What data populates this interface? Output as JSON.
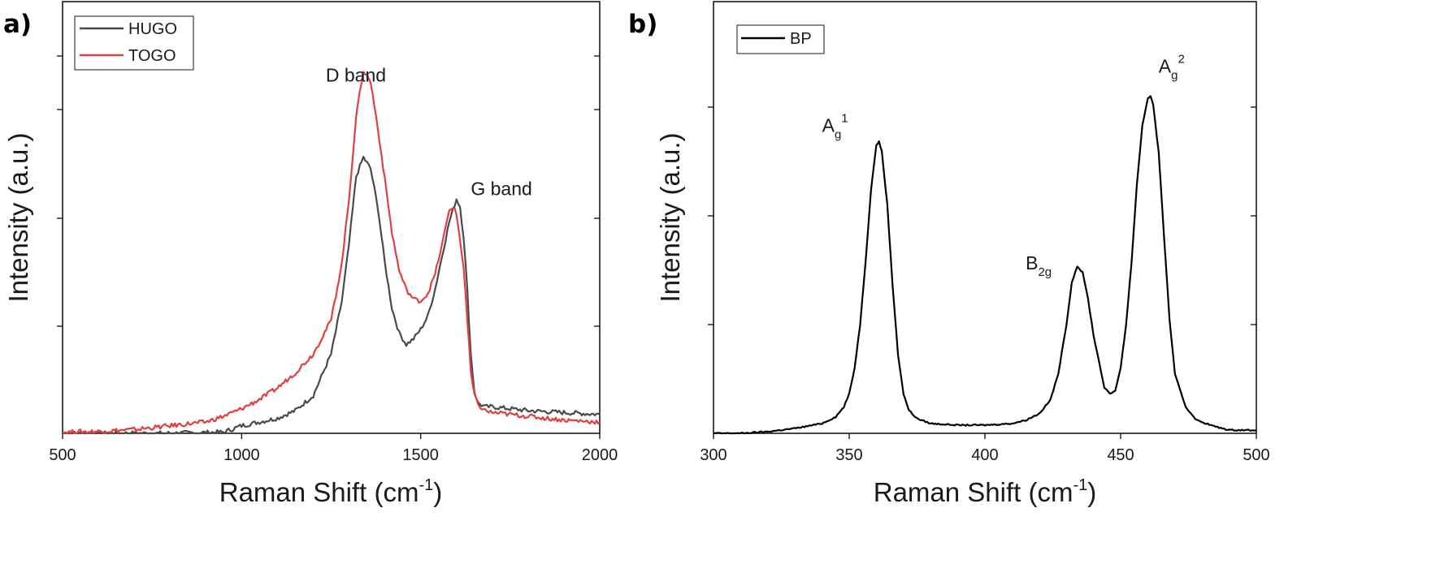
{
  "chart_data": [
    {
      "panel": "a)",
      "type": "line",
      "xlabel": "Raman Shift (cm",
      "xlabel_sup": "-1",
      "xlabel_tail": ")",
      "ylabel": "Intensity (a.u.)",
      "xlim": [
        500,
        2000
      ],
      "ylim": [
        0,
        1.0
      ],
      "xticks": [
        500,
        1000,
        1500,
        2000
      ],
      "yticks": [
        0.2,
        0.4,
        0.6,
        0.8,
        1.0
      ],
      "y_tick_labels_shown": false,
      "legend_position": "top-left",
      "series": [
        {
          "name": "HUGO",
          "color": "#4a4a4a",
          "x": [
            500,
            800,
            950,
            1000,
            1050,
            1100,
            1150,
            1200,
            1250,
            1280,
            1300,
            1320,
            1340,
            1360,
            1380,
            1400,
            1420,
            1440,
            1460,
            1480,
            1500,
            1520,
            1540,
            1560,
            1580,
            1600,
            1610,
            1620,
            1630,
            1640,
            1650,
            1660,
            1680,
            1700,
            1750,
            1800,
            1900,
            2000
          ],
          "y": [
            0.0,
            0.0,
            0.003,
            0.02,
            0.03,
            0.04,
            0.06,
            0.1,
            0.21,
            0.35,
            0.5,
            0.68,
            0.73,
            0.7,
            0.6,
            0.45,
            0.33,
            0.265,
            0.235,
            0.25,
            0.275,
            0.31,
            0.38,
            0.47,
            0.56,
            0.62,
            0.6,
            0.52,
            0.38,
            0.21,
            0.11,
            0.08,
            0.07,
            0.07,
            0.065,
            0.06,
            0.055,
            0.05
          ]
        },
        {
          "name": "TOGO",
          "color": "#e04040",
          "x": [
            500,
            600,
            700,
            800,
            900,
            950,
            1000,
            1050,
            1100,
            1150,
            1200,
            1250,
            1280,
            1300,
            1320,
            1340,
            1360,
            1380,
            1400,
            1420,
            1440,
            1460,
            1480,
            1500,
            1520,
            1540,
            1560,
            1580,
            1590,
            1600,
            1620,
            1630,
            1640,
            1650,
            1660,
            1680,
            1700,
            1750,
            1800,
            1900,
            2000
          ],
          "y": [
            0.003,
            0.005,
            0.01,
            0.02,
            0.03,
            0.045,
            0.065,
            0.09,
            0.12,
            0.16,
            0.21,
            0.3,
            0.45,
            0.62,
            0.84,
            0.96,
            0.93,
            0.81,
            0.67,
            0.53,
            0.43,
            0.38,
            0.355,
            0.35,
            0.37,
            0.42,
            0.5,
            0.59,
            0.6,
            0.58,
            0.44,
            0.3,
            0.16,
            0.1,
            0.075,
            0.06,
            0.055,
            0.05,
            0.045,
            0.035,
            0.03
          ]
        }
      ],
      "annotations": [
        {
          "text": "D band",
          "x": 1235,
          "y": 0.93
        },
        {
          "text": "G band",
          "x": 1640,
          "y": 0.63
        }
      ]
    },
    {
      "panel": "b)",
      "type": "line",
      "xlabel": "Raman Shift (cm",
      "xlabel_sup": "-1",
      "xlabel_tail": ")",
      "ylabel": "Intensity (a.u.)",
      "xlim": [
        300,
        500
      ],
      "ylim": [
        0,
        1.0
      ],
      "xticks": [
        300,
        350,
        400,
        450,
        500
      ],
      "yticks": [
        0.2,
        0.4,
        0.6,
        0.8,
        1.0
      ],
      "y_tick_labels_shown": false,
      "legend_position": "top-left",
      "series": [
        {
          "name": "BP",
          "color": "#000000",
          "x": [
            300,
            310,
            320,
            330,
            340,
            345,
            348,
            350,
            352,
            354,
            356,
            358,
            360,
            361,
            362,
            364,
            366,
            368,
            370,
            372,
            375,
            380,
            390,
            400,
            410,
            415,
            420,
            424,
            427,
            430,
            432,
            434,
            436,
            438,
            440,
            442,
            444,
            446,
            448,
            450,
            452,
            454,
            456,
            458,
            460,
            461,
            462,
            464,
            466,
            468,
            470,
            474,
            478,
            485,
            490,
            500
          ],
          "y": [
            0.0,
            0.0,
            0.005,
            0.015,
            0.03,
            0.05,
            0.08,
            0.12,
            0.2,
            0.33,
            0.52,
            0.74,
            0.88,
            0.89,
            0.86,
            0.7,
            0.45,
            0.24,
            0.12,
            0.07,
            0.045,
            0.03,
            0.025,
            0.025,
            0.03,
            0.04,
            0.06,
            0.1,
            0.18,
            0.33,
            0.46,
            0.51,
            0.49,
            0.41,
            0.3,
            0.22,
            0.14,
            0.12,
            0.13,
            0.2,
            0.33,
            0.52,
            0.76,
            0.94,
            1.02,
            1.03,
            1.0,
            0.86,
            0.6,
            0.35,
            0.18,
            0.08,
            0.04,
            0.02,
            0.01,
            0.01
          ]
        }
      ],
      "annotations": [
        {
          "text": "A",
          "sub": "g",
          "sup": "1",
          "x": 340,
          "y": 0.92
        },
        {
          "text": "B",
          "sub": "2g",
          "sup": "",
          "x": 415,
          "y": 0.5
        },
        {
          "text": "A",
          "sub": "g",
          "sup": "2",
          "x": 464,
          "y": 1.1
        }
      ]
    }
  ]
}
